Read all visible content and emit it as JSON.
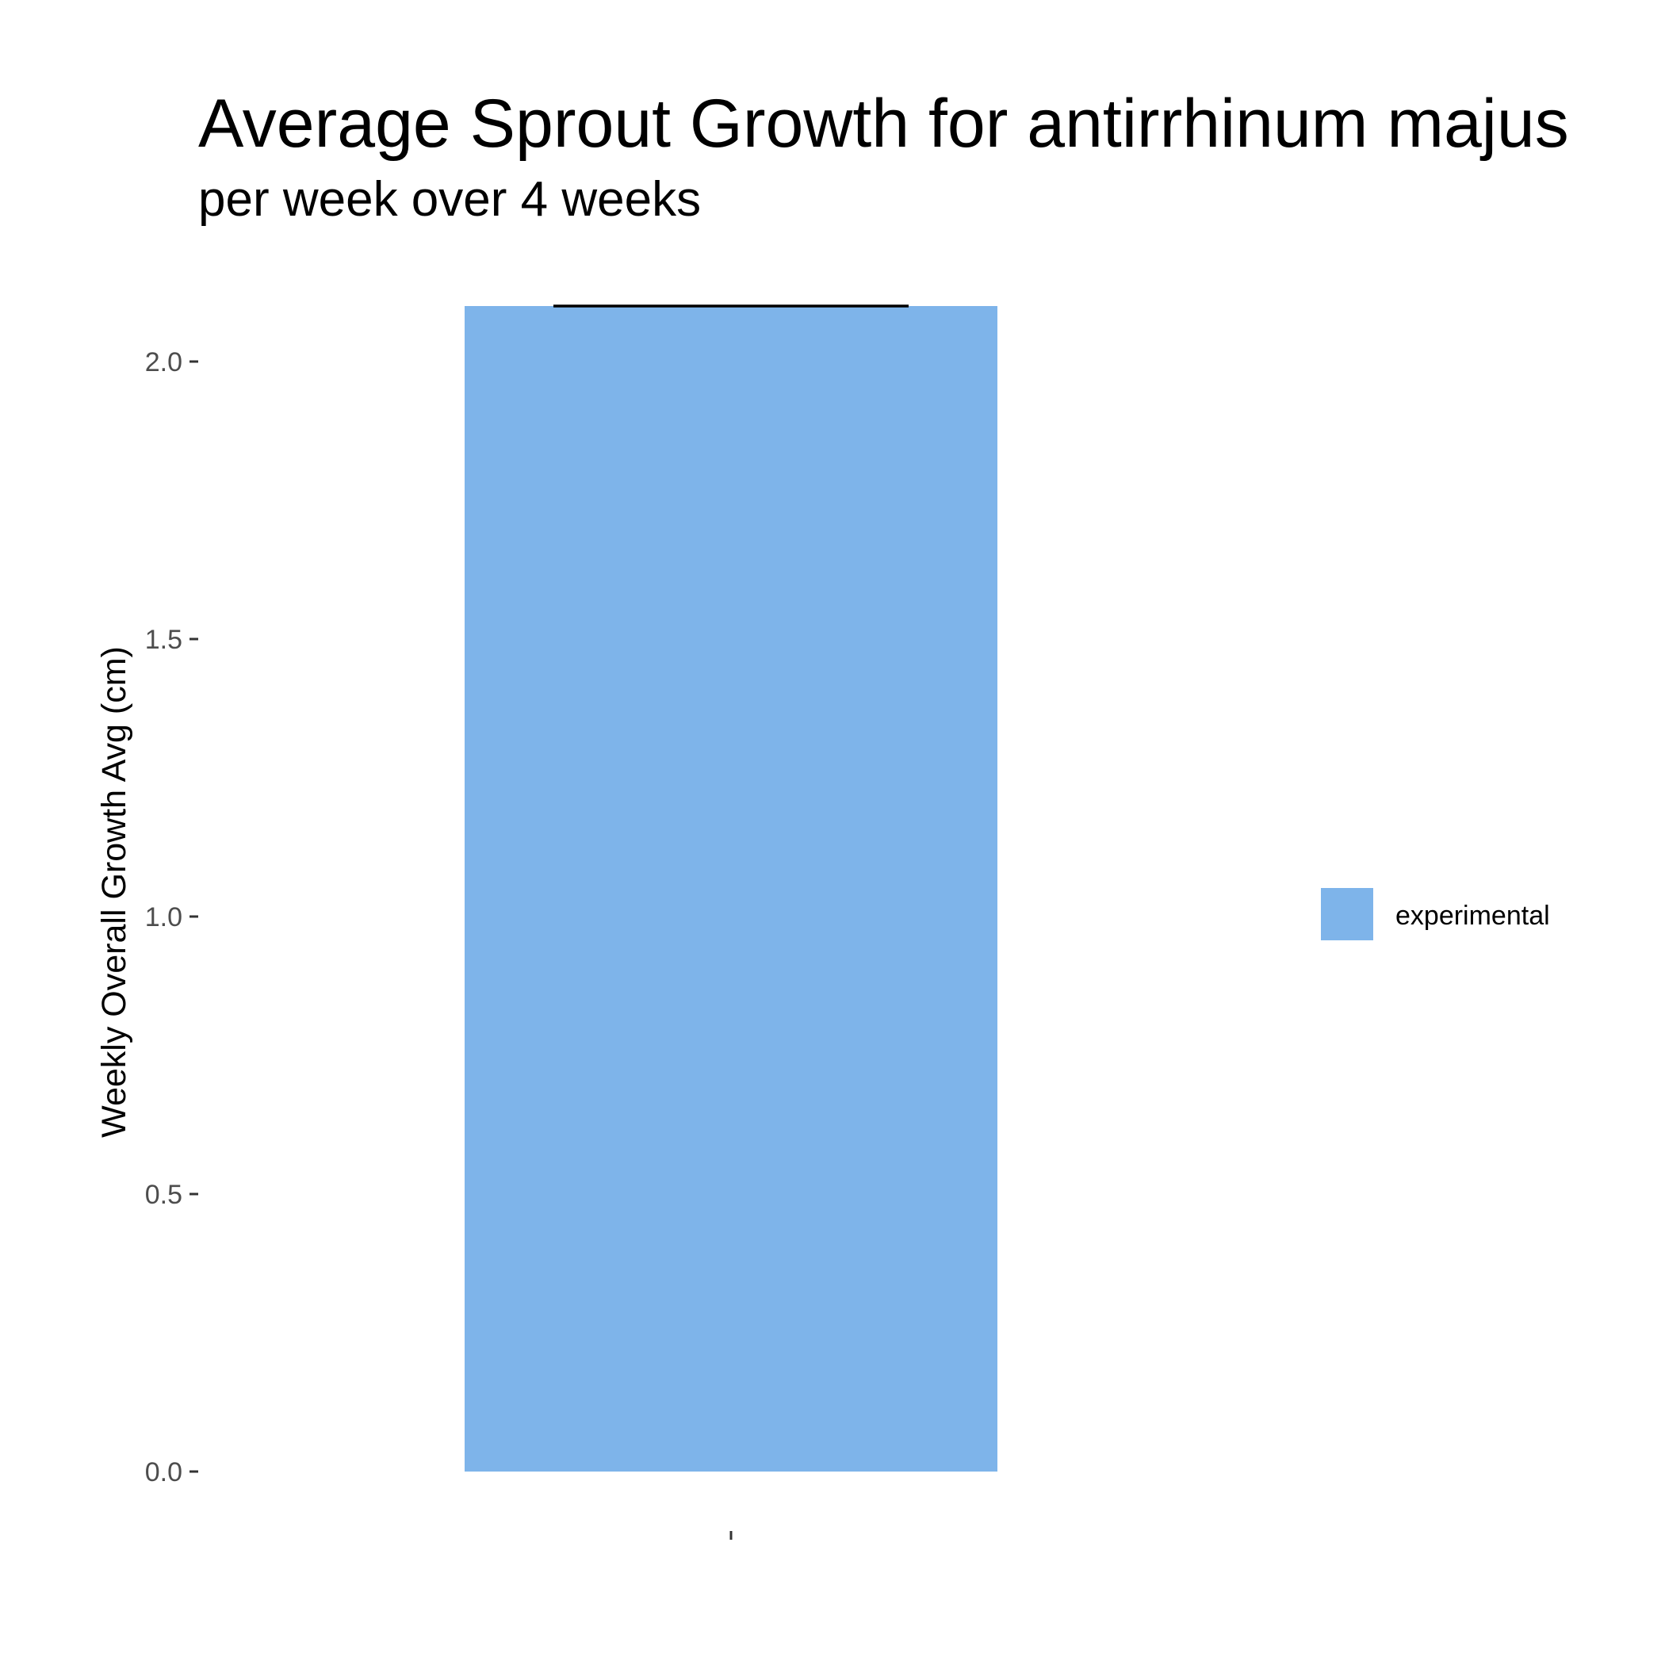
{
  "chart_data": {
    "type": "bar",
    "title": "Average Sprout Growth for antirrhinum majus",
    "subtitle": "per week over 4 weeks",
    "xlabel": "",
    "ylabel": "Weekly Overall Growth Avg (cm)",
    "categories": [
      ""
    ],
    "series": [
      {
        "name": "experimental",
        "values": [
          2.1
        ],
        "error_upper": [
          2.1
        ],
        "color": "#7EB4EA"
      }
    ],
    "ylim": [
      0,
      2.1
    ],
    "yticks": [
      0.0,
      0.5,
      1.0,
      1.5,
      2.0
    ],
    "ytick_labels": [
      "0.0",
      "0.5",
      "1.0",
      "1.5",
      "2.0"
    ],
    "grid": false,
    "legend_position": "right"
  }
}
